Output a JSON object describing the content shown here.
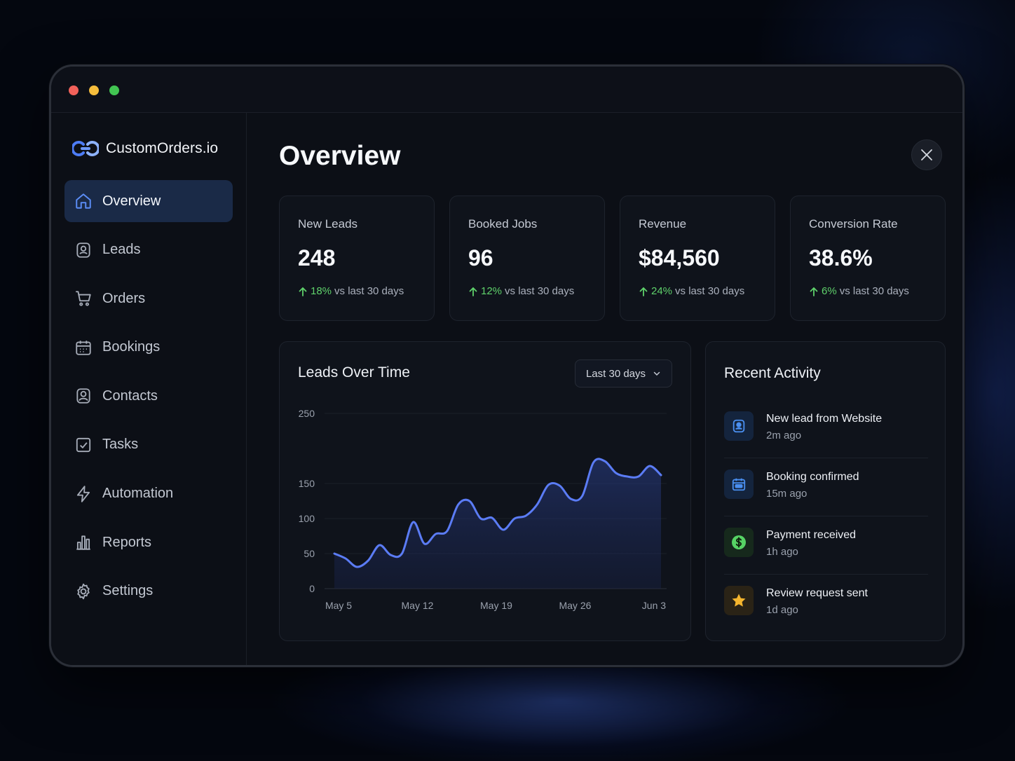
{
  "app": {
    "brand": "CustomOrders.io"
  },
  "sidebar": {
    "items": [
      {
        "label": "Overview",
        "icon": "home-icon",
        "active": true
      },
      {
        "label": "Leads",
        "icon": "user-badge-icon"
      },
      {
        "label": "Orders",
        "icon": "cart-icon"
      },
      {
        "label": "Bookings",
        "icon": "calendar-icon"
      },
      {
        "label": "Contacts",
        "icon": "contacts-icon"
      },
      {
        "label": "Tasks",
        "icon": "checkbox-icon"
      },
      {
        "label": "Automation",
        "icon": "lightning-icon"
      },
      {
        "label": "Reports",
        "icon": "bar-chart-icon"
      },
      {
        "label": "Settings",
        "icon": "gear-icon"
      }
    ]
  },
  "header": {
    "title": "Overview"
  },
  "stats": [
    {
      "label": "New Leads",
      "value": "248",
      "delta": "18%",
      "suffix": "vs last 30 days"
    },
    {
      "label": "Booked Jobs",
      "value": "96",
      "delta": "12%",
      "suffix": "vs last 30 days"
    },
    {
      "label": "Revenue",
      "value": "$84,560",
      "delta": "24%",
      "suffix": "vs last 30 days"
    },
    {
      "label": "Conversion Rate",
      "value": "38.6%",
      "delta": "6%",
      "suffix": "vs last 30 days"
    }
  ],
  "chart": {
    "title": "Leads Over Time",
    "range": "Last 30 days"
  },
  "chart_data": {
    "type": "area",
    "title": "Leads Over Time",
    "xlabel": "",
    "ylabel": "",
    "y_ticks": [
      0,
      50,
      100,
      150,
      250
    ],
    "x_tick_labels": [
      "May 5",
      "May 12",
      "May 19",
      "May 26",
      "Jun 3"
    ],
    "ylim": [
      0,
      250
    ],
    "grid": true,
    "line_color": "#5b7cf5",
    "x_indices": [
      0,
      1,
      2,
      3,
      4,
      5,
      6,
      7,
      8,
      9,
      10,
      11,
      12,
      13,
      14,
      15,
      16,
      17,
      18,
      19,
      20,
      21,
      22,
      23,
      24,
      25,
      26,
      27,
      28,
      29
    ],
    "values": [
      50,
      43,
      31,
      40,
      62,
      48,
      50,
      95,
      64,
      78,
      82,
      120,
      125,
      100,
      101,
      84,
      100,
      104,
      120,
      148,
      147,
      128,
      132,
      180,
      182,
      165,
      160,
      160,
      175,
      162
    ]
  },
  "activity": {
    "title": "Recent Activity",
    "items": [
      {
        "title": "New lead from Website",
        "time": "2m ago",
        "icon": "user-badge-icon",
        "color": "#4a8ff0",
        "bg": "#14243d"
      },
      {
        "title": "Booking confirmed",
        "time": "15m ago",
        "icon": "calendar-icon",
        "color": "#4a8ff0",
        "bg": "#14243d"
      },
      {
        "title": "Payment received",
        "time": "1h ago",
        "icon": "dollar-icon",
        "color": "#56d364",
        "bg": "#16291c"
      },
      {
        "title": "Review request sent",
        "time": "1d ago",
        "icon": "star-icon",
        "color": "#f5b52e",
        "bg": "#2a2316"
      }
    ]
  }
}
